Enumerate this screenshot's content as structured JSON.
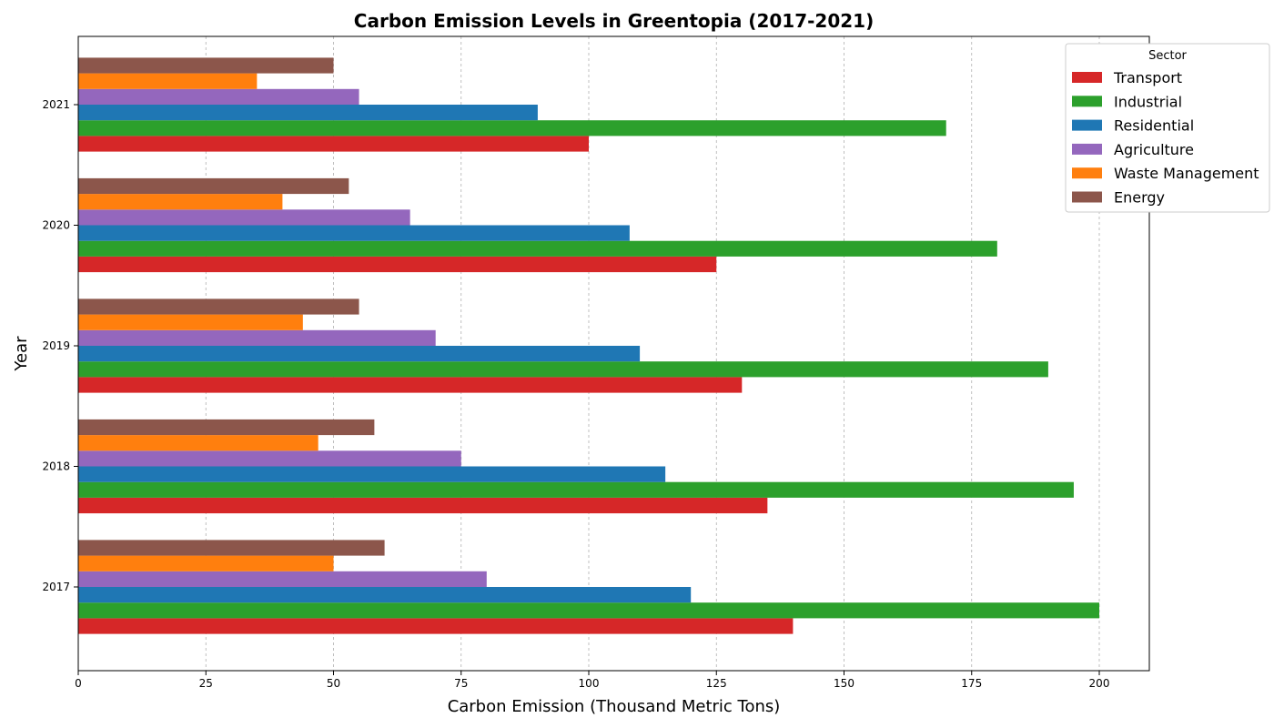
{
  "chart_data": {
    "type": "bar",
    "orientation": "horizontal",
    "title": "Carbon Emission Levels in Greentopia (2017-2021)",
    "xlabel": "Carbon Emission (Thousand Metric Tons)",
    "ylabel": "Year",
    "categories": [
      "2017",
      "2018",
      "2019",
      "2020",
      "2021"
    ],
    "xlim": [
      0,
      210
    ],
    "xticks": [
      0,
      25,
      50,
      75,
      100,
      125,
      150,
      175,
      200
    ],
    "grid": "x, dashed",
    "legend": {
      "title": "Sector",
      "placement": "top-right"
    },
    "series": [
      {
        "name": "Transport",
        "color": "#d62728",
        "values": [
          140,
          135,
          130,
          125,
          100
        ]
      },
      {
        "name": "Industrial",
        "color": "#2ca02c",
        "values": [
          200,
          195,
          190,
          180,
          170
        ]
      },
      {
        "name": "Residential",
        "color": "#1f77b4",
        "values": [
          120,
          115,
          110,
          108,
          90
        ]
      },
      {
        "name": "Agriculture",
        "color": "#9467bd",
        "values": [
          80,
          75,
          70,
          65,
          55
        ]
      },
      {
        "name": "Waste Management",
        "color": "#ff7f0e",
        "values": [
          50,
          47,
          44,
          40,
          35
        ]
      },
      {
        "name": "Energy",
        "color": "#8c564b",
        "values": [
          60,
          58,
          55,
          53,
          50
        ]
      }
    ]
  }
}
